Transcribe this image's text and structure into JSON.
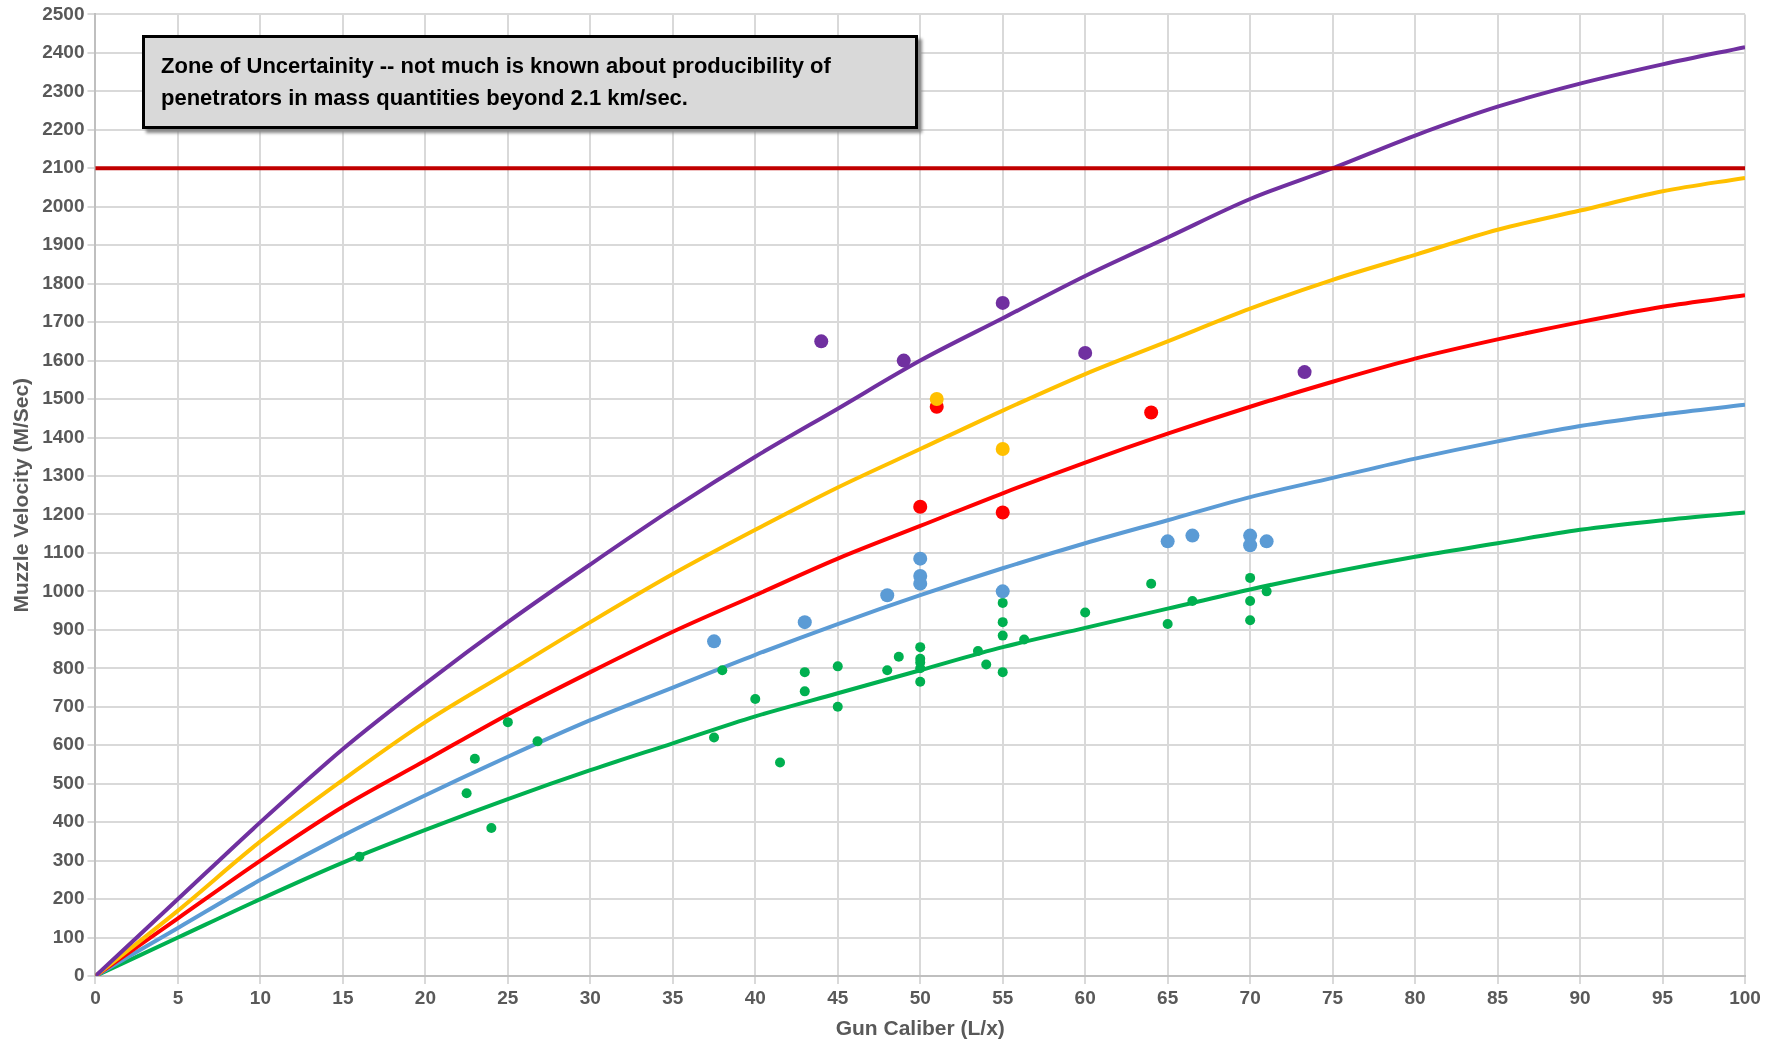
{
  "chart_data": {
    "type": "line",
    "xlabel": "Gun Caliber (L/x)",
    "ylabel": "Muzzle Velocity (M/Sec)",
    "xlim": [
      0,
      100
    ],
    "xticks": [
      0,
      5,
      10,
      15,
      20,
      25,
      30,
      35,
      40,
      45,
      50,
      55,
      60,
      65,
      70,
      75,
      80,
      85,
      90,
      95,
      100
    ],
    "ylim": [
      0,
      2500
    ],
    "yticks": [
      0,
      100,
      200,
      300,
      400,
      500,
      600,
      700,
      800,
      900,
      1000,
      1100,
      1200,
      1300,
      1400,
      1500,
      1600,
      1700,
      1800,
      1900,
      2000,
      2100,
      2200,
      2300,
      2400,
      2500
    ],
    "grid": true,
    "legend": false,
    "marker": "none",
    "line_style": "solid",
    "annotations": [
      "Zone of Uncertainity -- not much is known about producibility of penetrators in mass quantities beyond 2.1 km/sec."
    ],
    "ref_lines": [
      {
        "axis": "y",
        "value": 2100,
        "color": "#c00000"
      }
    ],
    "series": [
      {
        "color": "#7030a0",
        "x": [
          0,
          5,
          10,
          15,
          20,
          25,
          30,
          35,
          40,
          45,
          50,
          55,
          60,
          65,
          70,
          75,
          80,
          85,
          90,
          95,
          100
        ],
        "values": [
          0,
          200,
          400,
          590,
          760,
          920,
          1070,
          1215,
          1350,
          1475,
          1600,
          1710,
          1820,
          1920,
          2020,
          2100,
          2185,
          2260,
          2320,
          2370,
          2415
        ]
      },
      {
        "color": "#ffc000",
        "x": [
          0,
          5,
          10,
          15,
          20,
          25,
          30,
          35,
          40,
          45,
          50,
          55,
          60,
          65,
          70,
          75,
          80,
          85,
          90,
          95,
          100
        ],
        "values": [
          0,
          170,
          350,
          510,
          660,
          790,
          920,
          1045,
          1160,
          1270,
          1370,
          1470,
          1565,
          1650,
          1735,
          1810,
          1875,
          1940,
          1990,
          2040,
          2075
        ]
      },
      {
        "color": "#ff0000",
        "x": [
          0,
          5,
          10,
          15,
          20,
          25,
          30,
          35,
          40,
          45,
          50,
          55,
          60,
          65,
          70,
          75,
          80,
          85,
          90,
          95,
          100
        ],
        "values": [
          0,
          150,
          300,
          440,
          560,
          680,
          790,
          895,
          990,
          1085,
          1170,
          1255,
          1335,
          1410,
          1480,
          1545,
          1605,
          1655,
          1700,
          1740,
          1770
        ]
      },
      {
        "color": "#5b9bd5",
        "x": [
          0,
          5,
          10,
          15,
          20,
          25,
          30,
          35,
          40,
          45,
          50,
          55,
          60,
          65,
          70,
          75,
          80,
          85,
          90,
          95,
          100
        ],
        "values": [
          0,
          125,
          250,
          365,
          470,
          570,
          665,
          750,
          835,
          915,
          990,
          1060,
          1125,
          1185,
          1245,
          1295,
          1345,
          1390,
          1430,
          1460,
          1485
        ]
      },
      {
        "color": "#00b050",
        "x": [
          0,
          5,
          10,
          15,
          20,
          25,
          30,
          35,
          40,
          45,
          50,
          55,
          60,
          65,
          70,
          75,
          80,
          85,
          90,
          95,
          100
        ],
        "values": [
          0,
          100,
          200,
          295,
          380,
          460,
          535,
          605,
          675,
          735,
          795,
          855,
          905,
          955,
          1005,
          1050,
          1090,
          1125,
          1160,
          1185,
          1205
        ]
      },
      {
        "type": "scatter",
        "marker": "circle",
        "color": "#7030a0",
        "x": [
          44,
          49,
          55,
          60,
          73.3
        ],
        "values": [
          1650,
          1600,
          1750,
          1620,
          1570
        ]
      },
      {
        "type": "scatter",
        "marker": "circle",
        "color": "#ffc000",
        "x": [
          51,
          55
        ],
        "values": [
          1500,
          1370
        ]
      },
      {
        "type": "scatter",
        "marker": "circle",
        "color": "#ff0000",
        "x": [
          51,
          50,
          55,
          64
        ],
        "values": [
          1480,
          1220,
          1205,
          1465
        ]
      },
      {
        "type": "scatter",
        "marker": "circle",
        "color": "#5b9bd5",
        "x": [
          37.5,
          43,
          48,
          50,
          50,
          50,
          55,
          65,
          66.5,
          70,
          70,
          71
        ],
        "values": [
          870,
          920,
          990,
          1085,
          1040,
          1020,
          1000,
          1130,
          1145,
          1145,
          1120,
          1130
        ]
      },
      {
        "type": "scatter",
        "marker": "circle",
        "color": "#00b050",
        "x": [
          16,
          22.5,
          23,
          24,
          25,
          26.8,
          37.5,
          38,
          40,
          41.5,
          43,
          43,
          45,
          45,
          48,
          48.7,
          50,
          50,
          50,
          50,
          50,
          53.5,
          54,
          55,
          55,
          55,
          55,
          56.3,
          60,
          64,
          65,
          66.5,
          70,
          70,
          70,
          71
        ],
        "values": [
          310,
          475,
          565,
          385,
          660,
          610,
          620,
          795,
          720,
          555,
          790,
          740,
          805,
          700,
          795,
          830,
          855,
          825,
          815,
          800,
          765,
          845,
          810,
          970,
          920,
          885,
          790,
          875,
          945,
          1020,
          915,
          975,
          1035,
          975,
          925,
          1000
        ]
      }
    ]
  }
}
